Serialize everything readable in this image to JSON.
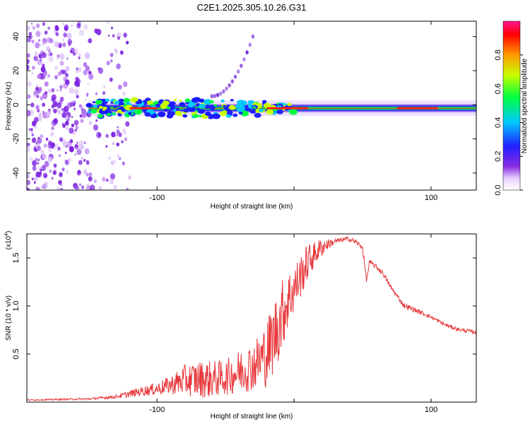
{
  "title": "C2E1.2025.305.10.26.G31",
  "chart_data": [
    {
      "type": "heatmap",
      "xlabel": "Height of straight line (km)",
      "ylabel": "Frequency (Hz)",
      "xlim": [
        -195,
        133
      ],
      "ylim": [
        -50,
        49
      ],
      "xticks": [
        -100,
        0,
        100
      ],
      "xtick_labels": [
        "-100",
        "",
        "100"
      ],
      "yticks": [
        -40,
        -20,
        0,
        20,
        40
      ],
      "ytick_labels": [
        "-40",
        "-20",
        "0",
        "20",
        "40"
      ],
      "colorbar": {
        "label": "Normalized spectral amplitude",
        "range": [
          0,
          1
        ],
        "ticks": [
          0.0,
          0.2,
          0.4,
          0.6,
          0.8
        ],
        "tick_labels": [
          "0.0",
          "0.2",
          "0.4",
          "0.6",
          "0.8"
        ]
      },
      "ridge": {
        "frequency_hz": -2,
        "from_km": -150,
        "to_km": 133
      },
      "scatter_region_km": [
        -195,
        -120
      ],
      "rising_streak": {
        "from": [
          -60,
          5
        ],
        "to": [
          -30,
          40
        ]
      }
    },
    {
      "type": "line",
      "xlabel": "Height of straight line (km)",
      "ylabel": "SNR (10 * v/v)",
      "y_multiplier_label": "(x10",
      "y_multiplier_exp": "4",
      "xlim": [
        -195,
        133
      ],
      "ylim": [
        0,
        1.75
      ],
      "xticks": [
        -100,
        0,
        100
      ],
      "xtick_labels": [
        "-100",
        "",
        "100"
      ],
      "yticks": [
        0.5,
        1.0,
        1.5
      ],
      "ytick_labels": [
        "0.5",
        "1.0",
        "1.5"
      ],
      "color": "#e8383b",
      "envelope": {
        "x": [
          -195,
          -150,
          -130,
          -110,
          -100,
          -90,
          -80,
          -70,
          -60,
          -50,
          -40,
          -30,
          -25,
          -20,
          -15,
          -10,
          -5,
          0,
          5,
          10,
          15,
          20,
          25,
          30,
          35,
          40,
          45,
          50,
          53,
          55,
          60,
          65,
          70,
          75,
          80,
          90,
          100,
          110,
          120,
          133
        ],
        "base": [
          0.02,
          0.03,
          0.05,
          0.1,
          0.12,
          0.15,
          0.18,
          0.18,
          0.18,
          0.2,
          0.25,
          0.3,
          0.35,
          0.4,
          0.55,
          0.75,
          0.95,
          1.1,
          1.25,
          1.4,
          1.5,
          1.58,
          1.63,
          1.66,
          1.68,
          1.69,
          1.66,
          1.6,
          1.25,
          1.45,
          1.4,
          1.33,
          1.2,
          1.1,
          1.0,
          0.94,
          0.88,
          0.8,
          0.75,
          0.72
        ],
        "noise": [
          0.01,
          0.015,
          0.03,
          0.08,
          0.1,
          0.15,
          0.25,
          0.3,
          0.3,
          0.28,
          0.35,
          0.4,
          0.45,
          0.55,
          0.6,
          0.6,
          0.5,
          0.4,
          0.35,
          0.3,
          0.2,
          0.15,
          0.08,
          0.05,
          0.04,
          0.04,
          0.04,
          0.04,
          0.05,
          0.04,
          0.04,
          0.04,
          0.04,
          0.04,
          0.04,
          0.04,
          0.03,
          0.03,
          0.03,
          0.03
        ]
      }
    }
  ]
}
